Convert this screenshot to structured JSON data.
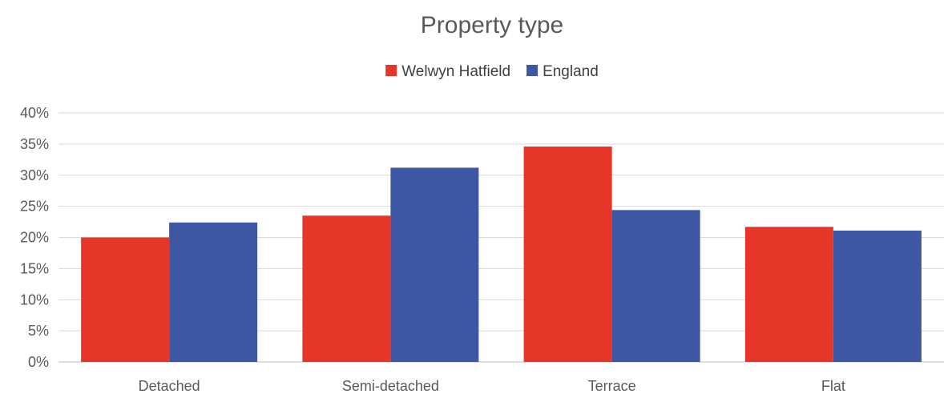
{
  "chart_data": {
    "type": "bar",
    "title": "Property type",
    "categories": [
      "Detached",
      "Semi-detached",
      "Terrace",
      "Flat"
    ],
    "series": [
      {
        "name": "Welwyn Hatfield",
        "color": "#e53627",
        "values": [
          20.0,
          23.5,
          34.6,
          21.7
        ]
      },
      {
        "name": "England",
        "color": "#3d57a5",
        "values": [
          22.4,
          31.2,
          24.4,
          21.1
        ]
      }
    ],
    "ylim": [
      0,
      40
    ],
    "yticks": [
      0,
      5,
      10,
      15,
      20,
      25,
      30,
      35,
      40
    ],
    "ytick_labels": [
      "0%",
      "5%",
      "10%",
      "15%",
      "20%",
      "25%",
      "30%",
      "35%",
      "40%"
    ],
    "grid": true,
    "legend_position": "top-center"
  }
}
